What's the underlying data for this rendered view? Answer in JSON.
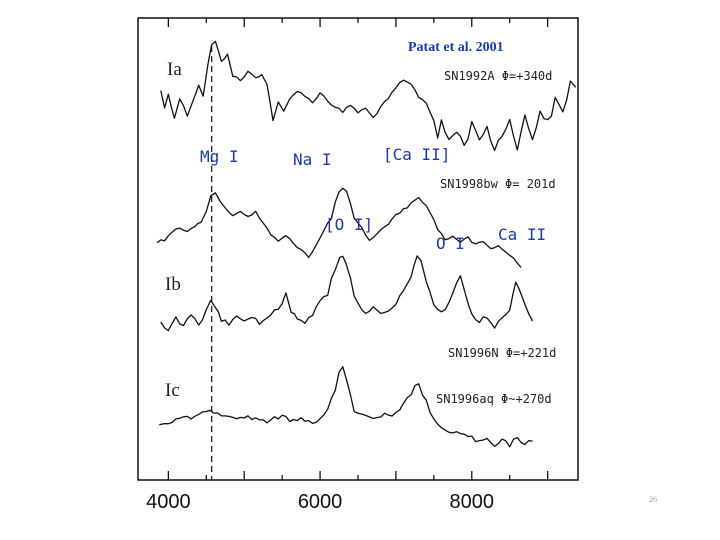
{
  "credit": "Patat et al. 2001",
  "slide_number": "26",
  "colors": {
    "line_label": "#1a3aa8",
    "spectrum": "#111111",
    "frame": "#000000"
  },
  "chart_data": {
    "type": "line",
    "title": "",
    "xlabel": "",
    "ylabel": "",
    "xlim": [
      3600,
      9400
    ],
    "x_ticks": [
      4000,
      6000,
      8000
    ],
    "reference_line_x": 4571,
    "type_labels": [
      "Ia",
      "Ib",
      "Ic"
    ],
    "line_ids": [
      {
        "label": "Mg I",
        "x": 4571
      },
      {
        "label": "Na I",
        "x": 5890
      },
      {
        "label": "[Ca II]",
        "x": 7300
      },
      {
        "label": "[O I]",
        "x": 6300
      },
      {
        "label": "O I",
        "x": 7774
      },
      {
        "label": "Ca II",
        "x": 8600
      }
    ],
    "series": [
      {
        "name": "SN1992A Φ=+340d",
        "points": [
          [
            3900,
            4.42
          ],
          [
            3950,
            4.22
          ],
          [
            4000,
            4.38
          ],
          [
            4080,
            4.12
          ],
          [
            4150,
            4.33
          ],
          [
            4250,
            4.15
          ],
          [
            4320,
            4.3
          ],
          [
            4400,
            4.48
          ],
          [
            4460,
            4.35
          ],
          [
            4520,
            4.7
          ],
          [
            4570,
            4.9
          ],
          [
            4620,
            4.95
          ],
          [
            4700,
            4.72
          ],
          [
            4780,
            4.82
          ],
          [
            4850,
            4.58
          ],
          [
            4950,
            4.52
          ],
          [
            5050,
            4.62
          ],
          [
            5150,
            4.55
          ],
          [
            5230,
            4.6
          ],
          [
            5300,
            4.48
          ],
          [
            5380,
            4.1
          ],
          [
            5450,
            4.28
          ],
          [
            5520,
            4.18
          ],
          [
            5600,
            4.32
          ],
          [
            5700,
            4.42
          ],
          [
            5800,
            4.36
          ],
          [
            5900,
            4.28
          ],
          [
            6000,
            4.4
          ],
          [
            6100,
            4.3
          ],
          [
            6200,
            4.24
          ],
          [
            6300,
            4.18
          ],
          [
            6400,
            4.26
          ],
          [
            6500,
            4.18
          ],
          [
            6600,
            4.22
          ],
          [
            6700,
            4.12
          ],
          [
            6800,
            4.24
          ],
          [
            6900,
            4.32
          ],
          [
            7000,
            4.45
          ],
          [
            7100,
            4.52
          ],
          [
            7200,
            4.48
          ],
          [
            7300,
            4.35
          ],
          [
            7400,
            4.28
          ],
          [
            7500,
            4.1
          ],
          [
            7550,
            3.92
          ],
          [
            7600,
            4.05
          ],
          [
            7700,
            3.88
          ],
          [
            7800,
            3.98
          ],
          [
            7900,
            3.82
          ],
          [
            8000,
            4.05
          ],
          [
            8100,
            3.92
          ],
          [
            8200,
            3.98
          ],
          [
            8300,
            3.78
          ],
          [
            8400,
            3.95
          ],
          [
            8500,
            4.08
          ],
          [
            8600,
            3.82
          ],
          [
            8700,
            4.12
          ],
          [
            8800,
            3.9
          ],
          [
            8900,
            4.2
          ],
          [
            9000,
            4.06
          ],
          [
            9100,
            4.3
          ],
          [
            9200,
            4.18
          ],
          [
            9300,
            4.5
          ],
          [
            9370,
            4.45
          ]
        ]
      },
      {
        "name": "SN1998bw Φ= 201d",
        "points": [
          [
            3850,
            2.78
          ],
          [
            3950,
            2.8
          ],
          [
            4050,
            2.88
          ],
          [
            4150,
            2.92
          ],
          [
            4250,
            2.9
          ],
          [
            4350,
            2.96
          ],
          [
            4430,
            3.0
          ],
          [
            4500,
            3.1
          ],
          [
            4560,
            3.26
          ],
          [
            4620,
            3.3
          ],
          [
            4680,
            3.22
          ],
          [
            4760,
            3.14
          ],
          [
            4850,
            3.06
          ],
          [
            4950,
            3.12
          ],
          [
            5050,
            3.04
          ],
          [
            5150,
            3.1
          ],
          [
            5250,
            2.98
          ],
          [
            5350,
            2.86
          ],
          [
            5450,
            2.78
          ],
          [
            5550,
            2.84
          ],
          [
            5650,
            2.76
          ],
          [
            5750,
            2.7
          ],
          [
            5850,
            2.62
          ],
          [
            5950,
            2.74
          ],
          [
            6050,
            2.9
          ],
          [
            6150,
            3.04
          ],
          [
            6200,
            3.2
          ],
          [
            6250,
            3.3
          ],
          [
            6300,
            3.36
          ],
          [
            6350,
            3.32
          ],
          [
            6400,
            3.18
          ],
          [
            6450,
            3.02
          ],
          [
            6550,
            2.92
          ],
          [
            6650,
            2.8
          ],
          [
            6750,
            2.86
          ],
          [
            6850,
            2.94
          ],
          [
            6950,
            3.02
          ],
          [
            7050,
            3.1
          ],
          [
            7150,
            3.16
          ],
          [
            7250,
            3.22
          ],
          [
            7300,
            3.26
          ],
          [
            7350,
            3.22
          ],
          [
            7450,
            3.1
          ],
          [
            7550,
            2.92
          ],
          [
            7650,
            2.8
          ],
          [
            7750,
            2.84
          ],
          [
            7850,
            2.78
          ],
          [
            7950,
            2.82
          ],
          [
            8050,
            2.74
          ],
          [
            8150,
            2.78
          ],
          [
            8250,
            2.7
          ],
          [
            8350,
            2.74
          ],
          [
            8450,
            2.66
          ],
          [
            8550,
            2.6
          ],
          [
            8650,
            2.5
          ]
        ]
      },
      {
        "name": "SN1996N Φ=+221d",
        "points": [
          [
            3900,
            1.9
          ],
          [
            4000,
            1.84
          ],
          [
            4100,
            1.96
          ],
          [
            4200,
            1.86
          ],
          [
            4300,
            1.98
          ],
          [
            4400,
            1.9
          ],
          [
            4500,
            2.02
          ],
          [
            4560,
            2.14
          ],
          [
            4620,
            2.06
          ],
          [
            4700,
            1.94
          ],
          [
            4800,
            1.9
          ],
          [
            4900,
            2.0
          ],
          [
            5000,
            1.92
          ],
          [
            5100,
            1.98
          ],
          [
            5200,
            1.9
          ],
          [
            5300,
            1.96
          ],
          [
            5400,
            2.02
          ],
          [
            5500,
            2.12
          ],
          [
            5550,
            2.2
          ],
          [
            5620,
            2.02
          ],
          [
            5700,
            1.96
          ],
          [
            5800,
            1.92
          ],
          [
            5900,
            2.0
          ],
          [
            6000,
            2.12
          ],
          [
            6100,
            2.22
          ],
          [
            6150,
            2.4
          ],
          [
            6200,
            2.46
          ],
          [
            6260,
            2.6
          ],
          [
            6300,
            2.64
          ],
          [
            6340,
            2.56
          ],
          [
            6400,
            2.4
          ],
          [
            6450,
            2.2
          ],
          [
            6500,
            2.1
          ],
          [
            6600,
            2.02
          ],
          [
            6700,
            2.06
          ],
          [
            6800,
            1.98
          ],
          [
            6900,
            2.02
          ],
          [
            7000,
            2.1
          ],
          [
            7100,
            2.24
          ],
          [
            7200,
            2.42
          ],
          [
            7280,
            2.6
          ],
          [
            7330,
            2.56
          ],
          [
            7400,
            2.36
          ],
          [
            7500,
            2.1
          ],
          [
            7600,
            2.0
          ],
          [
            7700,
            2.12
          ],
          [
            7800,
            2.34
          ],
          [
            7850,
            2.4
          ],
          [
            7920,
            2.18
          ],
          [
            8000,
            2.0
          ],
          [
            8100,
            1.9
          ],
          [
            8200,
            1.98
          ],
          [
            8300,
            1.86
          ],
          [
            8400,
            1.94
          ],
          [
            8500,
            2.06
          ],
          [
            8580,
            2.34
          ],
          [
            8620,
            2.3
          ],
          [
            8700,
            2.1
          ],
          [
            8800,
            1.92
          ]
        ]
      },
      {
        "name": "SN1996aq Φ~+270d",
        "points": [
          [
            3880,
            0.8
          ],
          [
            4000,
            0.82
          ],
          [
            4100,
            0.85
          ],
          [
            4200,
            0.86
          ],
          [
            4300,
            0.88
          ],
          [
            4400,
            0.9
          ],
          [
            4500,
            0.92
          ],
          [
            4550,
            0.98
          ],
          [
            4600,
            0.94
          ],
          [
            4700,
            0.92
          ],
          [
            4800,
            0.9
          ],
          [
            4900,
            0.89
          ],
          [
            5000,
            0.88
          ],
          [
            5100,
            0.87
          ],
          [
            5200,
            0.86
          ],
          [
            5300,
            0.84
          ],
          [
            5400,
            0.86
          ],
          [
            5500,
            0.88
          ],
          [
            5600,
            0.86
          ],
          [
            5700,
            0.84
          ],
          [
            5800,
            0.86
          ],
          [
            5900,
            0.82
          ],
          [
            6000,
            0.88
          ],
          [
            6100,
            0.96
          ],
          [
            6200,
            1.18
          ],
          [
            6250,
            1.34
          ],
          [
            6300,
            1.4
          ],
          [
            6350,
            1.3
          ],
          [
            6400,
            1.12
          ],
          [
            6450,
            0.96
          ],
          [
            6550,
            0.9
          ],
          [
            6650,
            0.86
          ],
          [
            6750,
            0.88
          ],
          [
            6850,
            0.9
          ],
          [
            6950,
            0.88
          ],
          [
            7050,
            0.94
          ],
          [
            7150,
            1.08
          ],
          [
            7250,
            1.2
          ],
          [
            7300,
            1.24
          ],
          [
            7350,
            1.14
          ],
          [
            7450,
            0.94
          ],
          [
            7550,
            0.8
          ],
          [
            7600,
            0.74
          ],
          [
            7700,
            0.7
          ],
          [
            7800,
            0.74
          ],
          [
            7900,
            0.68
          ],
          [
            8000,
            0.66
          ],
          [
            8100,
            0.6
          ],
          [
            8200,
            0.64
          ],
          [
            8300,
            0.56
          ],
          [
            8400,
            0.62
          ],
          [
            8500,
            0.58
          ],
          [
            8600,
            0.66
          ],
          [
            8700,
            0.6
          ],
          [
            8800,
            0.62
          ]
        ]
      }
    ]
  }
}
